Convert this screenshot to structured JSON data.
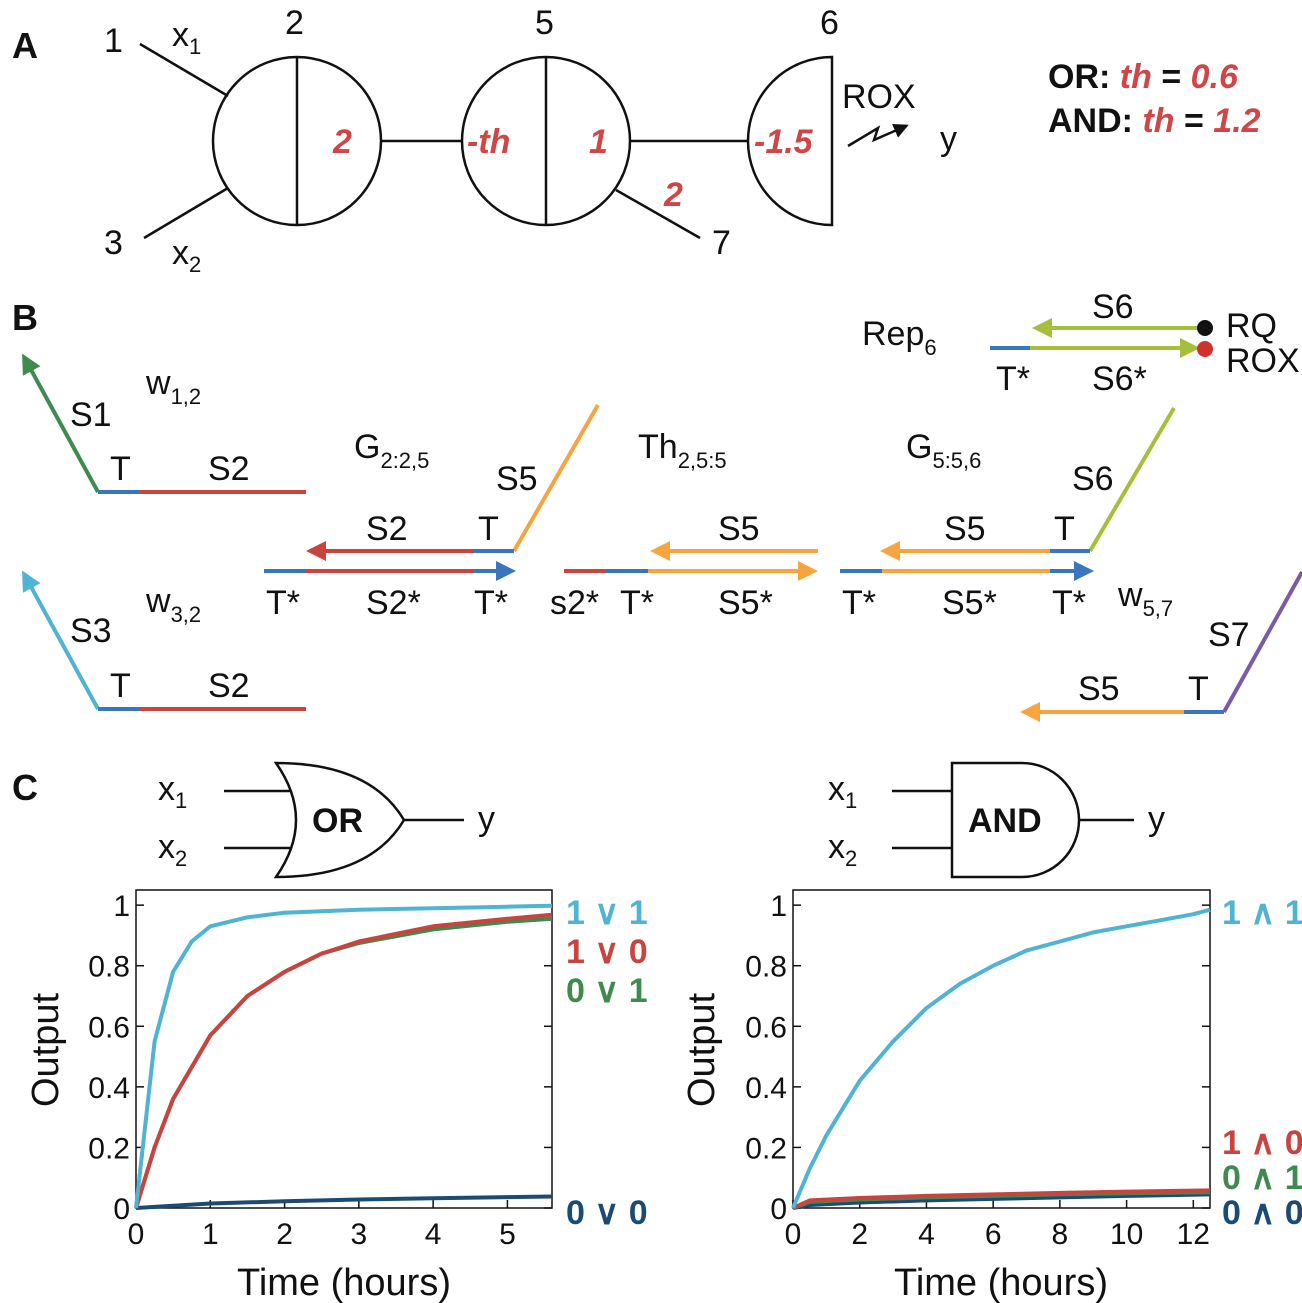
{
  "colors": {
    "blue": "#3a76bd",
    "red": "#c9443f",
    "green": "#3f8a4f",
    "orange": "#f5a440",
    "lime": "#a5bf3a",
    "purple": "#7b5aa6",
    "cyan": "#4fb3d1",
    "navy": "#1b4b75",
    "label_red": "#d04545"
  },
  "panel_a": {
    "label": "A",
    "node_ids": [
      "1",
      "2",
      "3",
      "5",
      "6",
      "7"
    ],
    "x1": "x",
    "x1_sub": "1",
    "x2": "x",
    "x2_sub": "2",
    "w_2": "2",
    "th_neg": "-th",
    "w_1": "1",
    "w_edge2": "2",
    "out_bias": "-1.5",
    "rox": "ROX",
    "y": "y",
    "or_label": "OR:",
    "or_th": "th",
    "or_eq": " = ",
    "or_val": "0.6",
    "and_label": "AND:",
    "and_th": "th",
    "and_eq": " = ",
    "and_val": "1.2"
  },
  "panel_b": {
    "label": "B",
    "rep_main": "Rep",
    "rep_sub": "6",
    "s6": "S6",
    "s6star": "S6*",
    "tstar": "T*",
    "rq": "RQ",
    "rox": "ROX",
    "w12_main": "w",
    "w12_sub": "1,2",
    "w32_main": "w",
    "w32_sub": "3,2",
    "w57_main": "w",
    "w57_sub": "5,7",
    "g225_main": "G",
    "g225_sub": "2:2,5",
    "th255_main": "Th",
    "th255_sub": "2,5:5",
    "g556_main": "G",
    "g556_sub": "5:5,6",
    "s1": "S1",
    "s2": "S2",
    "s3": "S3",
    "s5": "S5",
    "s7": "S7",
    "t": "T",
    "s2star": "S2*",
    "s5star": "S5*",
    "s2lower": "s2*"
  },
  "panel_c": {
    "label": "C",
    "or_gate": "OR",
    "and_gate": "AND",
    "x1": "x",
    "x1_sub": "1",
    "x2": "x",
    "x2_sub": "2",
    "y": "y"
  },
  "chart_data": [
    {
      "type": "line",
      "xlabel": "Time (hours)",
      "ylabel": "Output",
      "xlim": [
        0,
        5.6
      ],
      "ylim": [
        0,
        1.05
      ],
      "xticks": [
        "0",
        "1",
        "2",
        "3",
        "4",
        "5"
      ],
      "yticks": [
        "0",
        "0.2",
        "0.4",
        "0.6",
        "0.8",
        "1"
      ],
      "series": [
        {
          "name": "1 ∨ 1",
          "color": "#4fb3d1",
          "x": [
            0,
            0.25,
            0.5,
            0.75,
            1,
            1.5,
            2,
            3,
            4,
            5,
            5.6
          ],
          "y": [
            0,
            0.55,
            0.78,
            0.88,
            0.93,
            0.96,
            0.975,
            0.985,
            0.99,
            0.995,
            0.998
          ]
        },
        {
          "name": "1 ∨ 0",
          "color": "#c9443f",
          "x": [
            0,
            0.25,
            0.5,
            1,
            1.5,
            2,
            2.5,
            3,
            4,
            5,
            5.6
          ],
          "y": [
            0,
            0.2,
            0.36,
            0.57,
            0.7,
            0.78,
            0.84,
            0.88,
            0.93,
            0.955,
            0.968
          ]
        },
        {
          "name": "0 ∨ 1",
          "color": "#3f8a4f",
          "x": [
            0,
            0.25,
            0.5,
            1,
            1.5,
            2,
            2.5,
            3,
            4,
            5,
            5.6
          ],
          "y": [
            0,
            0.2,
            0.36,
            0.57,
            0.7,
            0.78,
            0.84,
            0.875,
            0.92,
            0.945,
            0.955
          ]
        },
        {
          "name": "0 ∨ 0",
          "color": "#1b4b75",
          "x": [
            0,
            1,
            2,
            3,
            4,
            5,
            5.6
          ],
          "y": [
            0,
            0.015,
            0.022,
            0.028,
            0.032,
            0.036,
            0.038
          ]
        }
      ]
    },
    {
      "type": "line",
      "xlabel": "Time (hours)",
      "ylabel": "Output",
      "xlim": [
        0,
        12.5
      ],
      "ylim": [
        0,
        1.05
      ],
      "xticks": [
        "0",
        "2",
        "4",
        "6",
        "8",
        "10",
        "12"
      ],
      "yticks": [
        "0",
        "0.2",
        "0.4",
        "0.6",
        "0.8",
        "1"
      ],
      "series": [
        {
          "name": "1 ∧ 1",
          "color": "#4fb3d1",
          "x": [
            0,
            0.5,
            1,
            2,
            3,
            4,
            5,
            6,
            7,
            8,
            9,
            10,
            11,
            12,
            12.5
          ],
          "y": [
            0,
            0.13,
            0.24,
            0.42,
            0.55,
            0.66,
            0.74,
            0.8,
            0.85,
            0.88,
            0.91,
            0.93,
            0.95,
            0.97,
            0.985
          ]
        },
        {
          "name": "1 ∧ 0",
          "color": "#c9443f",
          "x": [
            0,
            0.5,
            2,
            4,
            6,
            8,
            10,
            12.5
          ],
          "y": [
            0,
            0.025,
            0.033,
            0.04,
            0.045,
            0.05,
            0.054,
            0.058
          ]
        },
        {
          "name": "0 ∧ 1",
          "color": "#3f8a4f",
          "x": [
            0,
            0.5,
            2,
            4,
            6,
            8,
            10,
            12.5
          ],
          "y": [
            0,
            0.02,
            0.028,
            0.035,
            0.04,
            0.045,
            0.049,
            0.052
          ]
        },
        {
          "name": "0 ∧ 0",
          "color": "#1b4b75",
          "x": [
            0,
            0.5,
            2,
            4,
            6,
            8,
            10,
            12.5
          ],
          "y": [
            0,
            0.01,
            0.018,
            0.025,
            0.03,
            0.035,
            0.04,
            0.045
          ]
        }
      ]
    }
  ]
}
